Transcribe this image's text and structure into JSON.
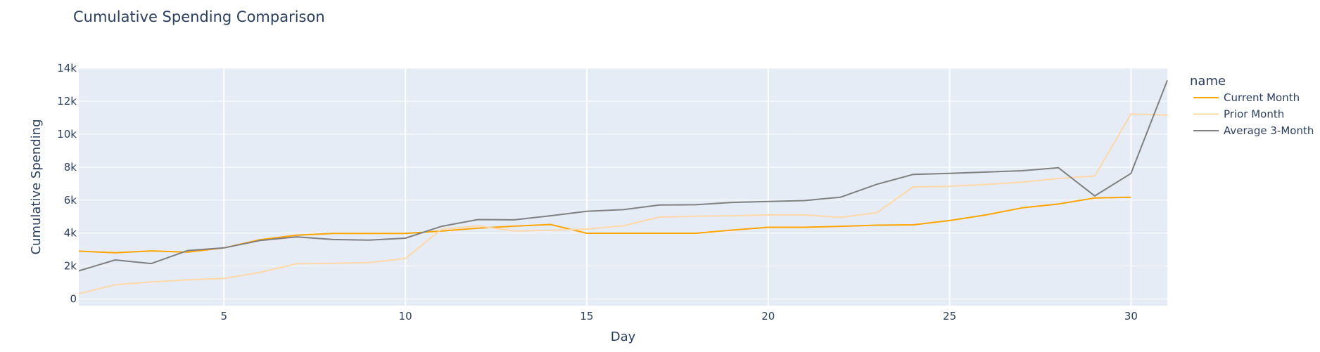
{
  "chart_data": {
    "type": "line",
    "title": "Cumulative Spending Comparison",
    "xlabel": "Day",
    "ylabel": "Cumulative Spending",
    "xlim": [
      1,
      31
    ],
    "ylim": [
      -400,
      14000
    ],
    "x_ticks": [
      5,
      10,
      15,
      20,
      25,
      30
    ],
    "y_ticks": [
      0,
      2000,
      4000,
      6000,
      8000,
      10000,
      12000,
      14000
    ],
    "y_tick_labels": [
      "0",
      "2k",
      "4k",
      "6k",
      "8k",
      "10k",
      "12k",
      "14k"
    ],
    "legend_title": "name",
    "legend_position": "right",
    "grid": true,
    "plot_bg": "#e5ecf6",
    "series": [
      {
        "name": "Current Month",
        "color": "#ffa500",
        "x": [
          1,
          2,
          3,
          4,
          5,
          6,
          7,
          8,
          9,
          10,
          11,
          12,
          13,
          14,
          15,
          16,
          17,
          18,
          19,
          20,
          21,
          22,
          23,
          24,
          25,
          26,
          27,
          28,
          29,
          30
        ],
        "values": [
          2900,
          2810,
          2920,
          2840,
          3100,
          3600,
          3870,
          3980,
          3980,
          3980,
          4120,
          4300,
          4420,
          4520,
          3990,
          3990,
          3990,
          3990,
          4180,
          4350,
          4350,
          4410,
          4480,
          4500,
          4760,
          5100,
          5530,
          5760,
          6130,
          6170
        ]
      },
      {
        "name": "Prior Month",
        "color": "#ffd8a8",
        "x": [
          1,
          2,
          3,
          4,
          5,
          6,
          7,
          8,
          9,
          10,
          11,
          12,
          13,
          14,
          15,
          16,
          17,
          18,
          19,
          20,
          21,
          22,
          23,
          24,
          25,
          26,
          27,
          28,
          29,
          30,
          31
        ],
        "values": [
          320,
          870,
          1040,
          1160,
          1250,
          1620,
          2140,
          2160,
          2210,
          2460,
          4230,
          4440,
          4120,
          4170,
          4240,
          4440,
          4970,
          5020,
          5050,
          5100,
          5100,
          4950,
          5240,
          6800,
          6830,
          6950,
          7090,
          7310,
          7460,
          11220,
          11150
        ]
      },
      {
        "name": "Average 3-Month",
        "color": "#808080",
        "x": [
          1,
          2,
          3,
          4,
          5,
          6,
          7,
          8,
          9,
          10,
          11,
          12,
          13,
          14,
          15,
          16,
          17,
          18,
          19,
          20,
          21,
          22,
          23,
          24,
          25,
          26,
          27,
          28,
          29,
          30,
          31
        ],
        "values": [
          1710,
          2370,
          2150,
          2940,
          3100,
          3550,
          3770,
          3610,
          3570,
          3690,
          4410,
          4820,
          4800,
          5050,
          5320,
          5420,
          5700,
          5720,
          5860,
          5920,
          5970,
          6180,
          6960,
          7560,
          7620,
          7700,
          7780,
          7960,
          6250,
          7620,
          13260
        ]
      }
    ]
  }
}
